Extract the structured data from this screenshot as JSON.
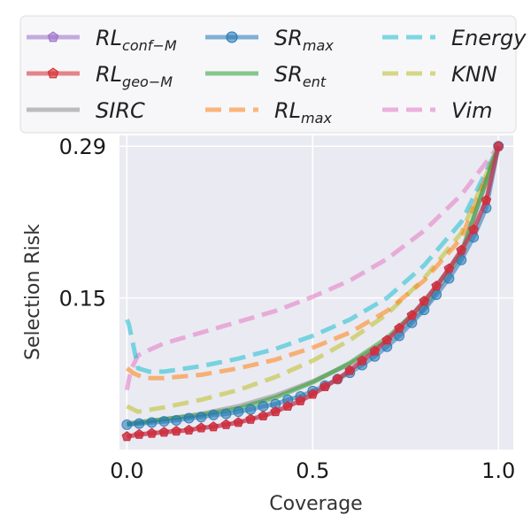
{
  "chart_data": {
    "type": "line",
    "title": "",
    "xlabel": "Coverage",
    "ylabel": "Selection Risk",
    "xlim": [
      -0.02,
      1.04
    ],
    "ylim": [
      0.01,
      0.3
    ],
    "xticks": [
      0.0,
      0.5,
      1.0
    ],
    "xtick_labels": [
      "0.0",
      "0.5",
      "1.0"
    ],
    "yticks": [
      0.15,
      0.29
    ],
    "ytick_labels": [
      "0.15",
      "0.29"
    ],
    "grid": true,
    "legend_position": "top",
    "series": [
      {
        "name": "RL_conf-M",
        "legend_main": "RL",
        "legend_sub": "conf−M",
        "color": "#9b6ec6",
        "style": "solid",
        "marker": "pentagon",
        "x": [
          0,
          0.033,
          0.067,
          0.1,
          0.133,
          0.167,
          0.2,
          0.233,
          0.267,
          0.3,
          0.333,
          0.367,
          0.4,
          0.433,
          0.467,
          0.5,
          0.533,
          0.567,
          0.6,
          0.633,
          0.667,
          0.7,
          0.733,
          0.767,
          0.8,
          0.833,
          0.867,
          0.9,
          0.933,
          0.967,
          1.0
        ],
        "y": [
          0.022,
          0.024,
          0.025,
          0.026,
          0.027,
          0.028,
          0.03,
          0.031,
          0.033,
          0.035,
          0.038,
          0.041,
          0.045,
          0.05,
          0.055,
          0.061,
          0.068,
          0.075,
          0.083,
          0.092,
          0.101,
          0.111,
          0.122,
          0.134,
          0.147,
          0.161,
          0.177,
          0.194,
          0.213,
          0.24,
          0.29
        ]
      },
      {
        "name": "RL_geo-M",
        "legend_main": "RL",
        "legend_sub": "geo−M",
        "color": "#d62728",
        "style": "solid",
        "marker": "pentagon",
        "x": [
          0,
          0.033,
          0.067,
          0.1,
          0.133,
          0.167,
          0.2,
          0.233,
          0.267,
          0.3,
          0.333,
          0.367,
          0.4,
          0.433,
          0.467,
          0.5,
          0.533,
          0.567,
          0.6,
          0.633,
          0.667,
          0.7,
          0.733,
          0.767,
          0.8,
          0.833,
          0.867,
          0.9,
          0.933,
          0.967,
          1.0
        ],
        "y": [
          0.022,
          0.024,
          0.025,
          0.026,
          0.027,
          0.028,
          0.03,
          0.031,
          0.033,
          0.035,
          0.038,
          0.041,
          0.045,
          0.05,
          0.055,
          0.061,
          0.068,
          0.075,
          0.083,
          0.092,
          0.101,
          0.111,
          0.122,
          0.134,
          0.147,
          0.161,
          0.177,
          0.194,
          0.213,
          0.24,
          0.29
        ]
      },
      {
        "name": "SIRC",
        "legend_main": "SIRC",
        "legend_sub": "",
        "color": "#8c8c8c",
        "style": "solid",
        "marker": "none",
        "x": [
          0,
          0.1,
          0.2,
          0.3,
          0.4,
          0.5,
          0.6,
          0.7,
          0.8,
          0.9,
          1.0
        ],
        "y": [
          0.033,
          0.038,
          0.043,
          0.05,
          0.06,
          0.073,
          0.089,
          0.11,
          0.14,
          0.19,
          0.29
        ]
      },
      {
        "name": "SR_max",
        "legend_main": "SR",
        "legend_sub": "max",
        "color": "#1f77b4",
        "style": "solid",
        "marker": "circle",
        "x": [
          0,
          0.033,
          0.067,
          0.1,
          0.133,
          0.167,
          0.2,
          0.233,
          0.267,
          0.3,
          0.333,
          0.367,
          0.4,
          0.433,
          0.467,
          0.5,
          0.533,
          0.567,
          0.6,
          0.633,
          0.667,
          0.7,
          0.733,
          0.767,
          0.8,
          0.833,
          0.867,
          0.9,
          0.933,
          0.967,
          1.0
        ],
        "y": [
          0.033,
          0.034,
          0.035,
          0.036,
          0.037,
          0.039,
          0.04,
          0.042,
          0.043,
          0.045,
          0.047,
          0.05,
          0.052,
          0.056,
          0.059,
          0.064,
          0.069,
          0.075,
          0.081,
          0.088,
          0.096,
          0.105,
          0.115,
          0.127,
          0.139,
          0.153,
          0.168,
          0.185,
          0.206,
          0.233,
          0.29
        ]
      },
      {
        "name": "SR_ent",
        "legend_main": "SR",
        "legend_sub": "ent",
        "color": "#2ca02c",
        "style": "solid",
        "marker": "none",
        "x": [
          0,
          0.1,
          0.2,
          0.3,
          0.4,
          0.5,
          0.6,
          0.7,
          0.8,
          0.9,
          1.0
        ],
        "y": [
          0.034,
          0.038,
          0.042,
          0.048,
          0.058,
          0.072,
          0.09,
          0.113,
          0.145,
          0.192,
          0.29
        ]
      },
      {
        "name": "RL_max",
        "legend_main": "RL",
        "legend_sub": "max",
        "color": "#ff7f0e",
        "style": "dashed",
        "marker": "none",
        "x": [
          0,
          0.02,
          0.05,
          0.1,
          0.2,
          0.3,
          0.4,
          0.5,
          0.6,
          0.7,
          0.8,
          0.9,
          1.0
        ],
        "y": [
          0.085,
          0.08,
          0.076,
          0.076,
          0.079,
          0.085,
          0.093,
          0.104,
          0.118,
          0.138,
          0.166,
          0.205,
          0.29
        ]
      },
      {
        "name": "Energy",
        "legend_main": "Energy",
        "legend_sub": "",
        "color": "#17becf",
        "style": "dashed",
        "marker": "none",
        "x": [
          0,
          0.005,
          0.015,
          0.03,
          0.06,
          0.1,
          0.2,
          0.3,
          0.4,
          0.5,
          0.6,
          0.7,
          0.8,
          0.9,
          1.0
        ],
        "y": [
          0.13,
          0.126,
          0.11,
          0.085,
          0.082,
          0.082,
          0.087,
          0.094,
          0.103,
          0.115,
          0.13,
          0.15,
          0.18,
          0.22,
          0.29
        ]
      },
      {
        "name": "KNN",
        "legend_main": "KNN",
        "legend_sub": "",
        "color": "#bcbd22",
        "style": "dashed",
        "marker": "none",
        "x": [
          0,
          0.03,
          0.1,
          0.2,
          0.3,
          0.4,
          0.5,
          0.6,
          0.7,
          0.8,
          0.9,
          1.0
        ],
        "y": [
          0.05,
          0.045,
          0.049,
          0.056,
          0.065,
          0.077,
          0.092,
          0.111,
          0.135,
          0.168,
          0.21,
          0.29
        ]
      },
      {
        "name": "Vim",
        "legend_main": "Vim",
        "legend_sub": "",
        "color": "#e377c2",
        "style": "dashed",
        "marker": "none",
        "x": [
          0,
          0.01,
          0.03,
          0.06,
          0.1,
          0.2,
          0.3,
          0.4,
          0.5,
          0.6,
          0.7,
          0.8,
          0.9,
          1.0
        ],
        "y": [
          0.065,
          0.083,
          0.097,
          0.102,
          0.108,
          0.118,
          0.128,
          0.138,
          0.151,
          0.166,
          0.186,
          0.212,
          0.245,
          0.29
        ]
      }
    ]
  }
}
